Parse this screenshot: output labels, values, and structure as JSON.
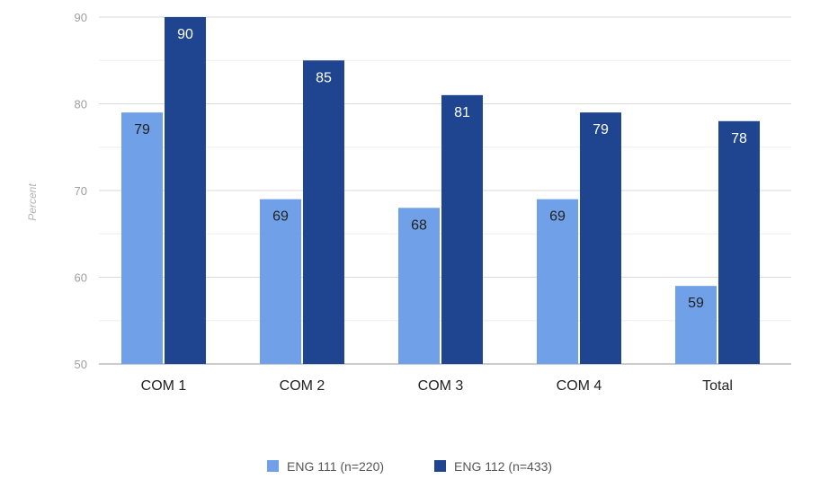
{
  "chart_data": {
    "type": "bar",
    "title": "",
    "xlabel": "",
    "ylabel": "Percent",
    "categories": [
      "COM 1",
      "COM 2",
      "COM 3",
      "COM 4",
      "Total"
    ],
    "series": [
      {
        "name": "ENG 111 (n=220)",
        "values": [
          79,
          69,
          68,
          69,
          59
        ],
        "color": "#6fa0e8"
      },
      {
        "name": "ENG 112 (n=433)",
        "values": [
          90,
          85,
          81,
          79,
          78
        ],
        "color": "#1f4590"
      }
    ],
    "ylim": [
      50,
      90
    ],
    "yticks": [
      50,
      60,
      70,
      80,
      90
    ],
    "grid": true,
    "legend": "bottom",
    "data_labels": true
  }
}
